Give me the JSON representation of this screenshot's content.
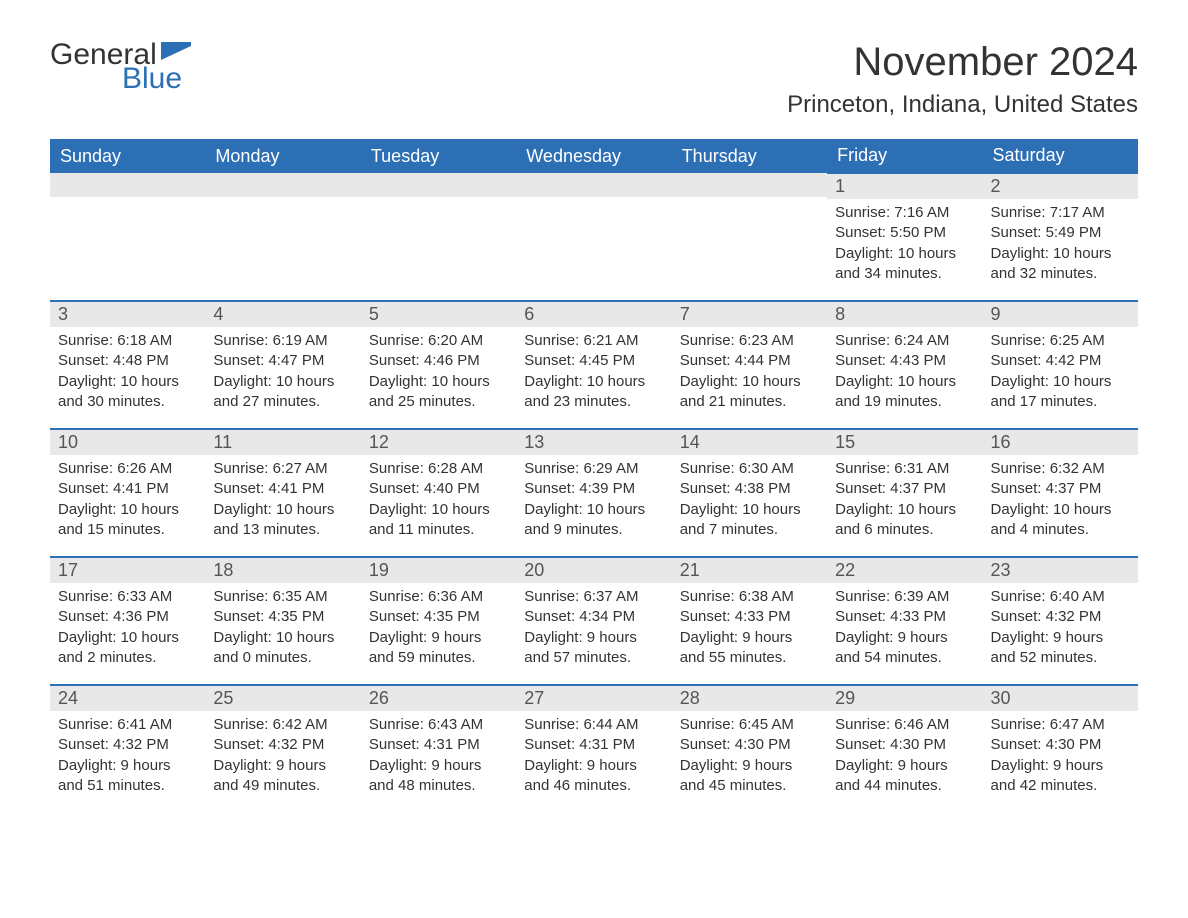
{
  "logo": {
    "general": "General",
    "blue": "Blue",
    "flag_color": "#2d6fb5"
  },
  "title": "November 2024",
  "location": "Princeton, Indiana, United States",
  "header_bg": "#2d6fb5",
  "header_fg": "#ffffff",
  "daynum_bg": "#e8e8e8",
  "border_color": "#2d6fb5",
  "text_color": "#333333",
  "weekdays": [
    "Sunday",
    "Monday",
    "Tuesday",
    "Wednesday",
    "Thursday",
    "Friday",
    "Saturday"
  ],
  "weeks": [
    [
      null,
      null,
      null,
      null,
      null,
      {
        "n": "1",
        "sunrise": "7:16 AM",
        "sunset": "5:50 PM",
        "daylight": "10 hours and 34 minutes."
      },
      {
        "n": "2",
        "sunrise": "7:17 AM",
        "sunset": "5:49 PM",
        "daylight": "10 hours and 32 minutes."
      }
    ],
    [
      {
        "n": "3",
        "sunrise": "6:18 AM",
        "sunset": "4:48 PM",
        "daylight": "10 hours and 30 minutes."
      },
      {
        "n": "4",
        "sunrise": "6:19 AM",
        "sunset": "4:47 PM",
        "daylight": "10 hours and 27 minutes."
      },
      {
        "n": "5",
        "sunrise": "6:20 AM",
        "sunset": "4:46 PM",
        "daylight": "10 hours and 25 minutes."
      },
      {
        "n": "6",
        "sunrise": "6:21 AM",
        "sunset": "4:45 PM",
        "daylight": "10 hours and 23 minutes."
      },
      {
        "n": "7",
        "sunrise": "6:23 AM",
        "sunset": "4:44 PM",
        "daylight": "10 hours and 21 minutes."
      },
      {
        "n": "8",
        "sunrise": "6:24 AM",
        "sunset": "4:43 PM",
        "daylight": "10 hours and 19 minutes."
      },
      {
        "n": "9",
        "sunrise": "6:25 AM",
        "sunset": "4:42 PM",
        "daylight": "10 hours and 17 minutes."
      }
    ],
    [
      {
        "n": "10",
        "sunrise": "6:26 AM",
        "sunset": "4:41 PM",
        "daylight": "10 hours and 15 minutes."
      },
      {
        "n": "11",
        "sunrise": "6:27 AM",
        "sunset": "4:41 PM",
        "daylight": "10 hours and 13 minutes."
      },
      {
        "n": "12",
        "sunrise": "6:28 AM",
        "sunset": "4:40 PM",
        "daylight": "10 hours and 11 minutes."
      },
      {
        "n": "13",
        "sunrise": "6:29 AM",
        "sunset": "4:39 PM",
        "daylight": "10 hours and 9 minutes."
      },
      {
        "n": "14",
        "sunrise": "6:30 AM",
        "sunset": "4:38 PM",
        "daylight": "10 hours and 7 minutes."
      },
      {
        "n": "15",
        "sunrise": "6:31 AM",
        "sunset": "4:37 PM",
        "daylight": "10 hours and 6 minutes."
      },
      {
        "n": "16",
        "sunrise": "6:32 AM",
        "sunset": "4:37 PM",
        "daylight": "10 hours and 4 minutes."
      }
    ],
    [
      {
        "n": "17",
        "sunrise": "6:33 AM",
        "sunset": "4:36 PM",
        "daylight": "10 hours and 2 minutes."
      },
      {
        "n": "18",
        "sunrise": "6:35 AM",
        "sunset": "4:35 PM",
        "daylight": "10 hours and 0 minutes."
      },
      {
        "n": "19",
        "sunrise": "6:36 AM",
        "sunset": "4:35 PM",
        "daylight": "9 hours and 59 minutes."
      },
      {
        "n": "20",
        "sunrise": "6:37 AM",
        "sunset": "4:34 PM",
        "daylight": "9 hours and 57 minutes."
      },
      {
        "n": "21",
        "sunrise": "6:38 AM",
        "sunset": "4:33 PM",
        "daylight": "9 hours and 55 minutes."
      },
      {
        "n": "22",
        "sunrise": "6:39 AM",
        "sunset": "4:33 PM",
        "daylight": "9 hours and 54 minutes."
      },
      {
        "n": "23",
        "sunrise": "6:40 AM",
        "sunset": "4:32 PM",
        "daylight": "9 hours and 52 minutes."
      }
    ],
    [
      {
        "n": "24",
        "sunrise": "6:41 AM",
        "sunset": "4:32 PM",
        "daylight": "9 hours and 51 minutes."
      },
      {
        "n": "25",
        "sunrise": "6:42 AM",
        "sunset": "4:32 PM",
        "daylight": "9 hours and 49 minutes."
      },
      {
        "n": "26",
        "sunrise": "6:43 AM",
        "sunset": "4:31 PM",
        "daylight": "9 hours and 48 minutes."
      },
      {
        "n": "27",
        "sunrise": "6:44 AM",
        "sunset": "4:31 PM",
        "daylight": "9 hours and 46 minutes."
      },
      {
        "n": "28",
        "sunrise": "6:45 AM",
        "sunset": "4:30 PM",
        "daylight": "9 hours and 45 minutes."
      },
      {
        "n": "29",
        "sunrise": "6:46 AM",
        "sunset": "4:30 PM",
        "daylight": "9 hours and 44 minutes."
      },
      {
        "n": "30",
        "sunrise": "6:47 AM",
        "sunset": "4:30 PM",
        "daylight": "9 hours and 42 minutes."
      }
    ]
  ],
  "labels": {
    "sunrise": "Sunrise: ",
    "sunset": "Sunset: ",
    "daylight": "Daylight: "
  }
}
